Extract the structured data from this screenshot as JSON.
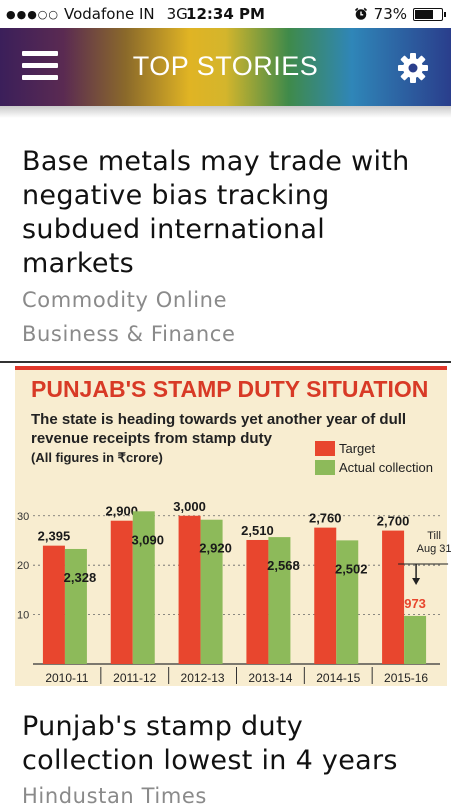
{
  "status_bar": {
    "carrier": "Vodafone IN",
    "network": "3G",
    "time": "12:34 PM",
    "battery": "73%",
    "battery_level": 0.73
  },
  "app_bar": {
    "title": "TOP STORIES",
    "menu_icon": "hamburger-menu-icon",
    "settings_icon": "gear-icon"
  },
  "stories": [
    {
      "title_lines": [
        "Base metals may trade with",
        "negative bias tracking",
        "subdued international",
        "markets"
      ],
      "source": "Commodity Online",
      "category": "Business & Finance"
    },
    {
      "title_lines": [
        "Punjab's stamp duty",
        "collection lowest in 4 years"
      ],
      "source": "Hindustan Times"
    }
  ],
  "colors": {
    "target": "#e8462e",
    "actual": "#8dba5a",
    "chart_bg": "#f8edd0",
    "headline_red": "#d83a26"
  },
  "chart_data": {
    "type": "bar",
    "title": "PUNJAB'S STAMP DUTY SITUATION",
    "subtitle_lines": [
      "The state is heading towards yet another year of dull",
      "revenue receipts from stamp duty"
    ],
    "units_note": "(All figures in ₹crore)",
    "categories": [
      "2010-11",
      "2011-12",
      "2012-13",
      "2013-14",
      "2014-15",
      "2015-16"
    ],
    "series": [
      {
        "name": "Target",
        "values": [
          2395,
          2900,
          3000,
          2510,
          2760,
          2700
        ],
        "labels": [
          "2,395",
          "2,900",
          "3,000",
          "2,510",
          "2,760",
          "2,700"
        ]
      },
      {
        "name": "Actual collection",
        "values": [
          2328,
          3090,
          2920,
          2568,
          2502,
          973
        ],
        "labels": [
          "2,328",
          "3,090",
          "2,920",
          "2,568",
          "2,502",
          "973"
        ]
      }
    ],
    "y_ticks": [
      "10",
      "20",
      "30"
    ],
    "y_tick_values": [
      1000,
      2000,
      3000
    ],
    "ylim": [
      0,
      3400
    ],
    "grid": true,
    "legend": "top-right",
    "annotation_lines": [
      "Till",
      "Aug 31"
    ]
  }
}
